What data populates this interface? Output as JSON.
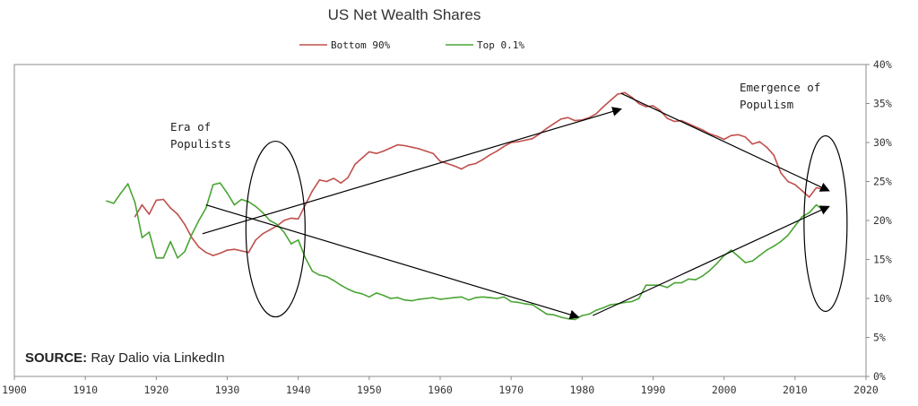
{
  "chart_data": {
    "type": "line",
    "title": "US Net Wealth Shares",
    "xlim": [
      1900,
      2020
    ],
    "x_ticks": [
      "1900",
      "1910",
      "1920",
      "1930",
      "1940",
      "1950",
      "1960",
      "1970",
      "1980",
      "1990",
      "2000",
      "2010",
      "2020"
    ],
    "ylim": [
      0,
      40
    ],
    "y_ticks": [
      "0%",
      "5%",
      "10%",
      "15%",
      "20%",
      "25%",
      "30%",
      "35%",
      "40%"
    ],
    "grid": false,
    "legend_position": "top-center",
    "series": [
      {
        "name": "Bottom 90%",
        "color": "#c0504d",
        "x": [
          1917,
          1918,
          1919,
          1920,
          1921,
          1922,
          1923,
          1924,
          1925,
          1926,
          1927,
          1928,
          1929,
          1930,
          1931,
          1932,
          1933,
          1934,
          1935,
          1936,
          1937,
          1938,
          1939,
          1940,
          1941,
          1942,
          1943,
          1944,
          1945,
          1946,
          1947,
          1948,
          1949,
          1950,
          1951,
          1952,
          1953,
          1954,
          1955,
          1956,
          1957,
          1958,
          1959,
          1960,
          1961,
          1962,
          1963,
          1964,
          1965,
          1966,
          1967,
          1968,
          1969,
          1970,
          1971,
          1972,
          1973,
          1974,
          1975,
          1976,
          1977,
          1978,
          1979,
          1980,
          1981,
          1982,
          1983,
          1984,
          1985,
          1986,
          1987,
          1988,
          1989,
          1990,
          1991,
          1992,
          1993,
          1994,
          1995,
          1996,
          1997,
          1998,
          1999,
          2000,
          2001,
          2002,
          2003,
          2004,
          2005,
          2006,
          2007,
          2008,
          2009,
          2010,
          2011,
          2012,
          2013,
          2014
        ],
        "values": [
          20.5,
          22.0,
          20.8,
          22.6,
          22.7,
          21.6,
          20.8,
          19.5,
          17.8,
          16.6,
          15.9,
          15.5,
          15.8,
          16.2,
          16.3,
          16.1,
          15.9,
          17.5,
          18.3,
          18.8,
          19.3,
          20.0,
          20.3,
          20.2,
          22.0,
          23.8,
          25.2,
          25.0,
          25.4,
          24.8,
          25.5,
          27.2,
          28.0,
          28.8,
          28.6,
          28.9,
          29.3,
          29.7,
          29.6,
          29.4,
          29.2,
          28.9,
          28.6,
          27.6,
          27.3,
          27.0,
          26.6,
          27.1,
          27.3,
          27.8,
          28.4,
          28.9,
          29.5,
          30.0,
          30.1,
          30.3,
          30.5,
          31.1,
          31.8,
          32.4,
          33.0,
          33.2,
          32.8,
          32.9,
          33.2,
          33.7,
          34.6,
          35.4,
          36.2,
          36.4,
          35.8,
          35.0,
          34.6,
          34.7,
          34.1,
          33.1,
          32.7,
          32.8,
          32.4,
          32.0,
          31.6,
          31.1,
          30.8,
          30.4,
          30.9,
          31.0,
          30.7,
          29.8,
          30.1,
          29.4,
          28.4,
          26.1,
          25.0,
          24.6,
          23.8,
          23.0,
          24.2,
          24.0
        ]
      },
      {
        "name": "Top 0.1%",
        "color": "#4aa535",
        "x": [
          1913,
          1914,
          1915,
          1916,
          1917,
          1918,
          1919,
          1920,
          1921,
          1922,
          1923,
          1924,
          1925,
          1926,
          1927,
          1928,
          1929,
          1930,
          1931,
          1932,
          1933,
          1934,
          1935,
          1936,
          1937,
          1938,
          1939,
          1940,
          1941,
          1942,
          1943,
          1944,
          1945,
          1946,
          1947,
          1948,
          1949,
          1950,
          1951,
          1952,
          1953,
          1954,
          1955,
          1956,
          1957,
          1958,
          1959,
          1960,
          1961,
          1962,
          1963,
          1964,
          1965,
          1966,
          1967,
          1968,
          1969,
          1970,
          1971,
          1972,
          1973,
          1974,
          1975,
          1976,
          1977,
          1978,
          1979,
          1980,
          1981,
          1982,
          1983,
          1984,
          1985,
          1986,
          1987,
          1988,
          1989,
          1990,
          1991,
          1992,
          1993,
          1994,
          1995,
          1996,
          1997,
          1998,
          1999,
          2000,
          2001,
          2002,
          2003,
          2004,
          2005,
          2006,
          2007,
          2008,
          2009,
          2010,
          2011,
          2012,
          2013,
          2014
        ],
        "values": [
          22.5,
          22.2,
          23.5,
          24.7,
          22.3,
          17.8,
          18.5,
          15.2,
          15.2,
          17.3,
          15.2,
          16.0,
          18.2,
          20.0,
          21.6,
          24.6,
          24.8,
          23.5,
          22.0,
          22.7,
          22.4,
          21.8,
          21.0,
          20.0,
          19.5,
          18.5,
          17.0,
          17.5,
          15.2,
          13.5,
          13.0,
          12.8,
          12.3,
          11.7,
          11.2,
          10.8,
          10.6,
          10.2,
          10.7,
          10.4,
          10.0,
          10.1,
          9.8,
          9.7,
          9.9,
          10.0,
          10.1,
          9.9,
          10.0,
          10.1,
          10.2,
          9.8,
          10.1,
          10.2,
          10.1,
          10.0,
          10.2,
          9.6,
          9.5,
          9.3,
          9.2,
          8.6,
          8.0,
          7.9,
          7.6,
          7.4,
          7.3,
          7.8,
          8.0,
          8.5,
          8.8,
          9.2,
          9.3,
          9.5,
          9.6,
          10.0,
          11.7,
          11.7,
          11.7,
          11.4,
          12.0,
          12.0,
          12.5,
          12.4,
          12.9,
          13.6,
          14.5,
          15.5,
          16.2,
          15.4,
          14.6,
          14.8,
          15.5,
          16.2,
          16.7,
          17.3,
          18.1,
          19.3,
          20.5,
          21.0,
          22.0,
          21.3
        ]
      }
    ],
    "annotations": [
      {
        "text": "Era of\nPopulists"
      },
      {
        "text": "Emergence of\nPopulism"
      }
    ],
    "arrows": [
      {
        "from": [
          1926.5,
          18.3
        ],
        "to": [
          1985.5,
          34.3
        ]
      },
      {
        "from": [
          1927,
          22.0
        ],
        "to": [
          1979.5,
          7.6
        ]
      },
      {
        "from": [
          1985.5,
          36.3
        ],
        "to": [
          2014.8,
          23.8
        ]
      },
      {
        "from": [
          1981.5,
          7.8
        ],
        "to": [
          2014.8,
          21.8
        ]
      }
    ],
    "ellipses": [
      {
        "center": [
          1936.8,
          18.9
        ]
      },
      {
        "center": [
          2014.3,
          19.6
        ]
      }
    ]
  },
  "source": {
    "label": "SOURCE:",
    "text": "Ray Dalio via LinkedIn"
  }
}
